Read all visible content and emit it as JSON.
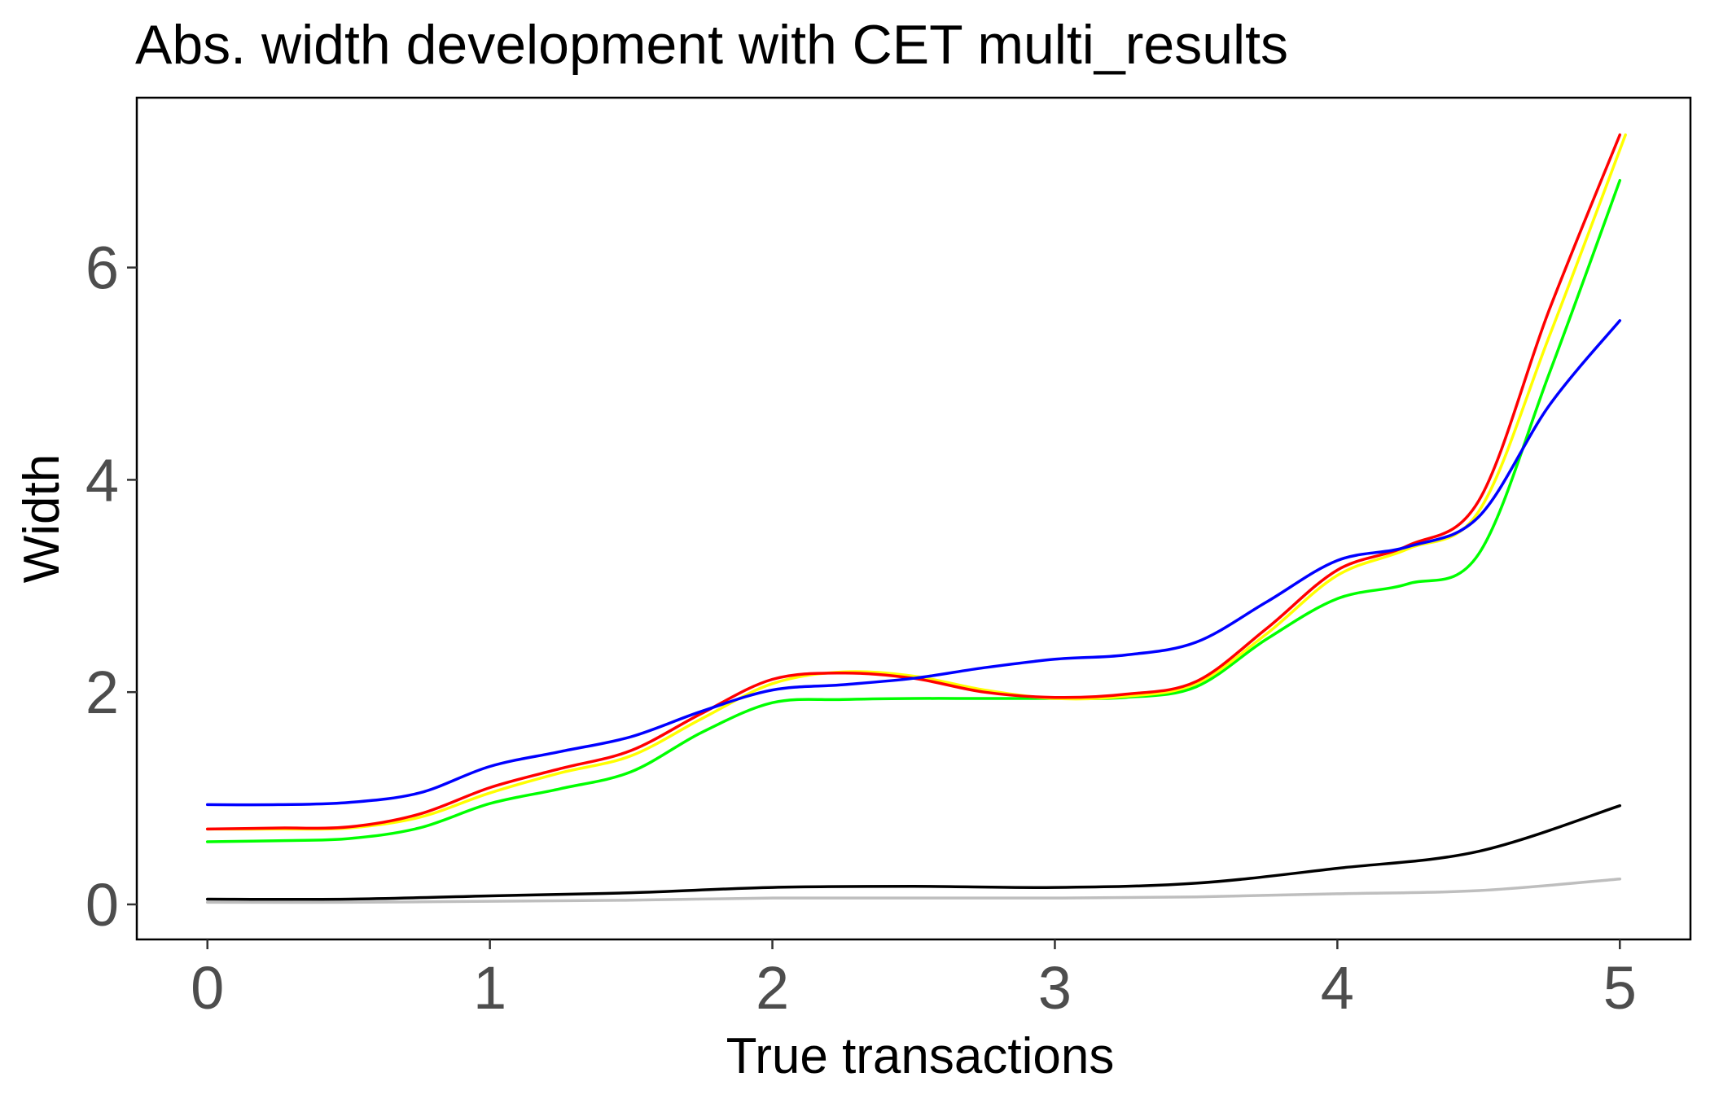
{
  "chart_data": {
    "type": "line",
    "title": "Abs. width development with CET multi_results",
    "xlabel": "True transactions",
    "ylabel": "Width",
    "xlim": [
      -0.25,
      5.25
    ],
    "ylim": [
      -0.33,
      7.6
    ],
    "x_ticks": [
      "0",
      "1",
      "2",
      "3",
      "4",
      "5"
    ],
    "y_ticks": [
      "0",
      "2",
      "4",
      "6"
    ],
    "grid": false,
    "legend": "none",
    "series": [
      {
        "color": "#ff0000",
        "points": [
          [
            0,
            0.71
          ],
          [
            0.25,
            0.72
          ],
          [
            0.5,
            0.73
          ],
          [
            0.75,
            0.85
          ],
          [
            1,
            1.1
          ],
          [
            1.25,
            1.28
          ],
          [
            1.5,
            1.45
          ],
          [
            1.75,
            1.8
          ],
          [
            2,
            2.12
          ],
          [
            2.25,
            2.18
          ],
          [
            2.5,
            2.13
          ],
          [
            2.75,
            2.0
          ],
          [
            3,
            1.95
          ],
          [
            3.25,
            1.98
          ],
          [
            3.5,
            2.1
          ],
          [
            3.75,
            2.6
          ],
          [
            4,
            3.15
          ],
          [
            4.25,
            3.38
          ],
          [
            4.5,
            3.8
          ],
          [
            4.75,
            5.6
          ],
          [
            5,
            7.25
          ]
        ]
      },
      {
        "color": "#ffff00",
        "points": [
          [
            0,
            0.71
          ],
          [
            0.25,
            0.71
          ],
          [
            0.5,
            0.72
          ],
          [
            0.75,
            0.82
          ],
          [
            1,
            1.05
          ],
          [
            1.25,
            1.24
          ],
          [
            1.5,
            1.4
          ],
          [
            1.75,
            1.75
          ],
          [
            2,
            2.08
          ],
          [
            2.25,
            2.19
          ],
          [
            2.5,
            2.15
          ],
          [
            2.75,
            2.02
          ],
          [
            3,
            1.94
          ],
          [
            3.25,
            1.96
          ],
          [
            3.5,
            2.08
          ],
          [
            3.75,
            2.55
          ],
          [
            4,
            3.1
          ],
          [
            4.25,
            3.35
          ],
          [
            4.5,
            3.7
          ],
          [
            4.75,
            5.35
          ],
          [
            5.02,
            7.25
          ]
        ]
      },
      {
        "color": "#00ff00",
        "points": [
          [
            0,
            0.59
          ],
          [
            0.25,
            0.6
          ],
          [
            0.5,
            0.62
          ],
          [
            0.75,
            0.72
          ],
          [
            1,
            0.95
          ],
          [
            1.25,
            1.09
          ],
          [
            1.5,
            1.25
          ],
          [
            1.75,
            1.62
          ],
          [
            2,
            1.9
          ],
          [
            2.25,
            1.93
          ],
          [
            2.5,
            1.94
          ],
          [
            2.75,
            1.94
          ],
          [
            3,
            1.94
          ],
          [
            3.25,
            1.95
          ],
          [
            3.5,
            2.05
          ],
          [
            3.75,
            2.5
          ],
          [
            4,
            2.88
          ],
          [
            4.25,
            3.02
          ],
          [
            4.5,
            3.3
          ],
          [
            4.75,
            5.0
          ],
          [
            5,
            6.82
          ]
        ]
      },
      {
        "color": "#0000ff",
        "points": [
          [
            0,
            0.94
          ],
          [
            0.25,
            0.94
          ],
          [
            0.5,
            0.96
          ],
          [
            0.75,
            1.05
          ],
          [
            1,
            1.3
          ],
          [
            1.25,
            1.44
          ],
          [
            1.5,
            1.58
          ],
          [
            1.75,
            1.82
          ],
          [
            2,
            2.02
          ],
          [
            2.25,
            2.07
          ],
          [
            2.5,
            2.13
          ],
          [
            2.75,
            2.23
          ],
          [
            3,
            2.31
          ],
          [
            3.25,
            2.35
          ],
          [
            3.5,
            2.47
          ],
          [
            3.75,
            2.85
          ],
          [
            4,
            3.24
          ],
          [
            4.25,
            3.37
          ],
          [
            4.5,
            3.65
          ],
          [
            4.75,
            4.7
          ],
          [
            5,
            5.5
          ]
        ]
      },
      {
        "color": "#000000",
        "points": [
          [
            0,
            0.05
          ],
          [
            0.5,
            0.05
          ],
          [
            1,
            0.08
          ],
          [
            1.5,
            0.11
          ],
          [
            2,
            0.16
          ],
          [
            2.5,
            0.17
          ],
          [
            3,
            0.16
          ],
          [
            3.5,
            0.2
          ],
          [
            4,
            0.34
          ],
          [
            4.5,
            0.5
          ],
          [
            5,
            0.93
          ]
        ]
      },
      {
        "color": "#bebebe",
        "points": [
          [
            0,
            0.02
          ],
          [
            0.5,
            0.02
          ],
          [
            1,
            0.03
          ],
          [
            1.5,
            0.04
          ],
          [
            2,
            0.06
          ],
          [
            2.5,
            0.06
          ],
          [
            3,
            0.06
          ],
          [
            3.5,
            0.07
          ],
          [
            4,
            0.1
          ],
          [
            4.5,
            0.13
          ],
          [
            5,
            0.24
          ]
        ]
      }
    ]
  }
}
